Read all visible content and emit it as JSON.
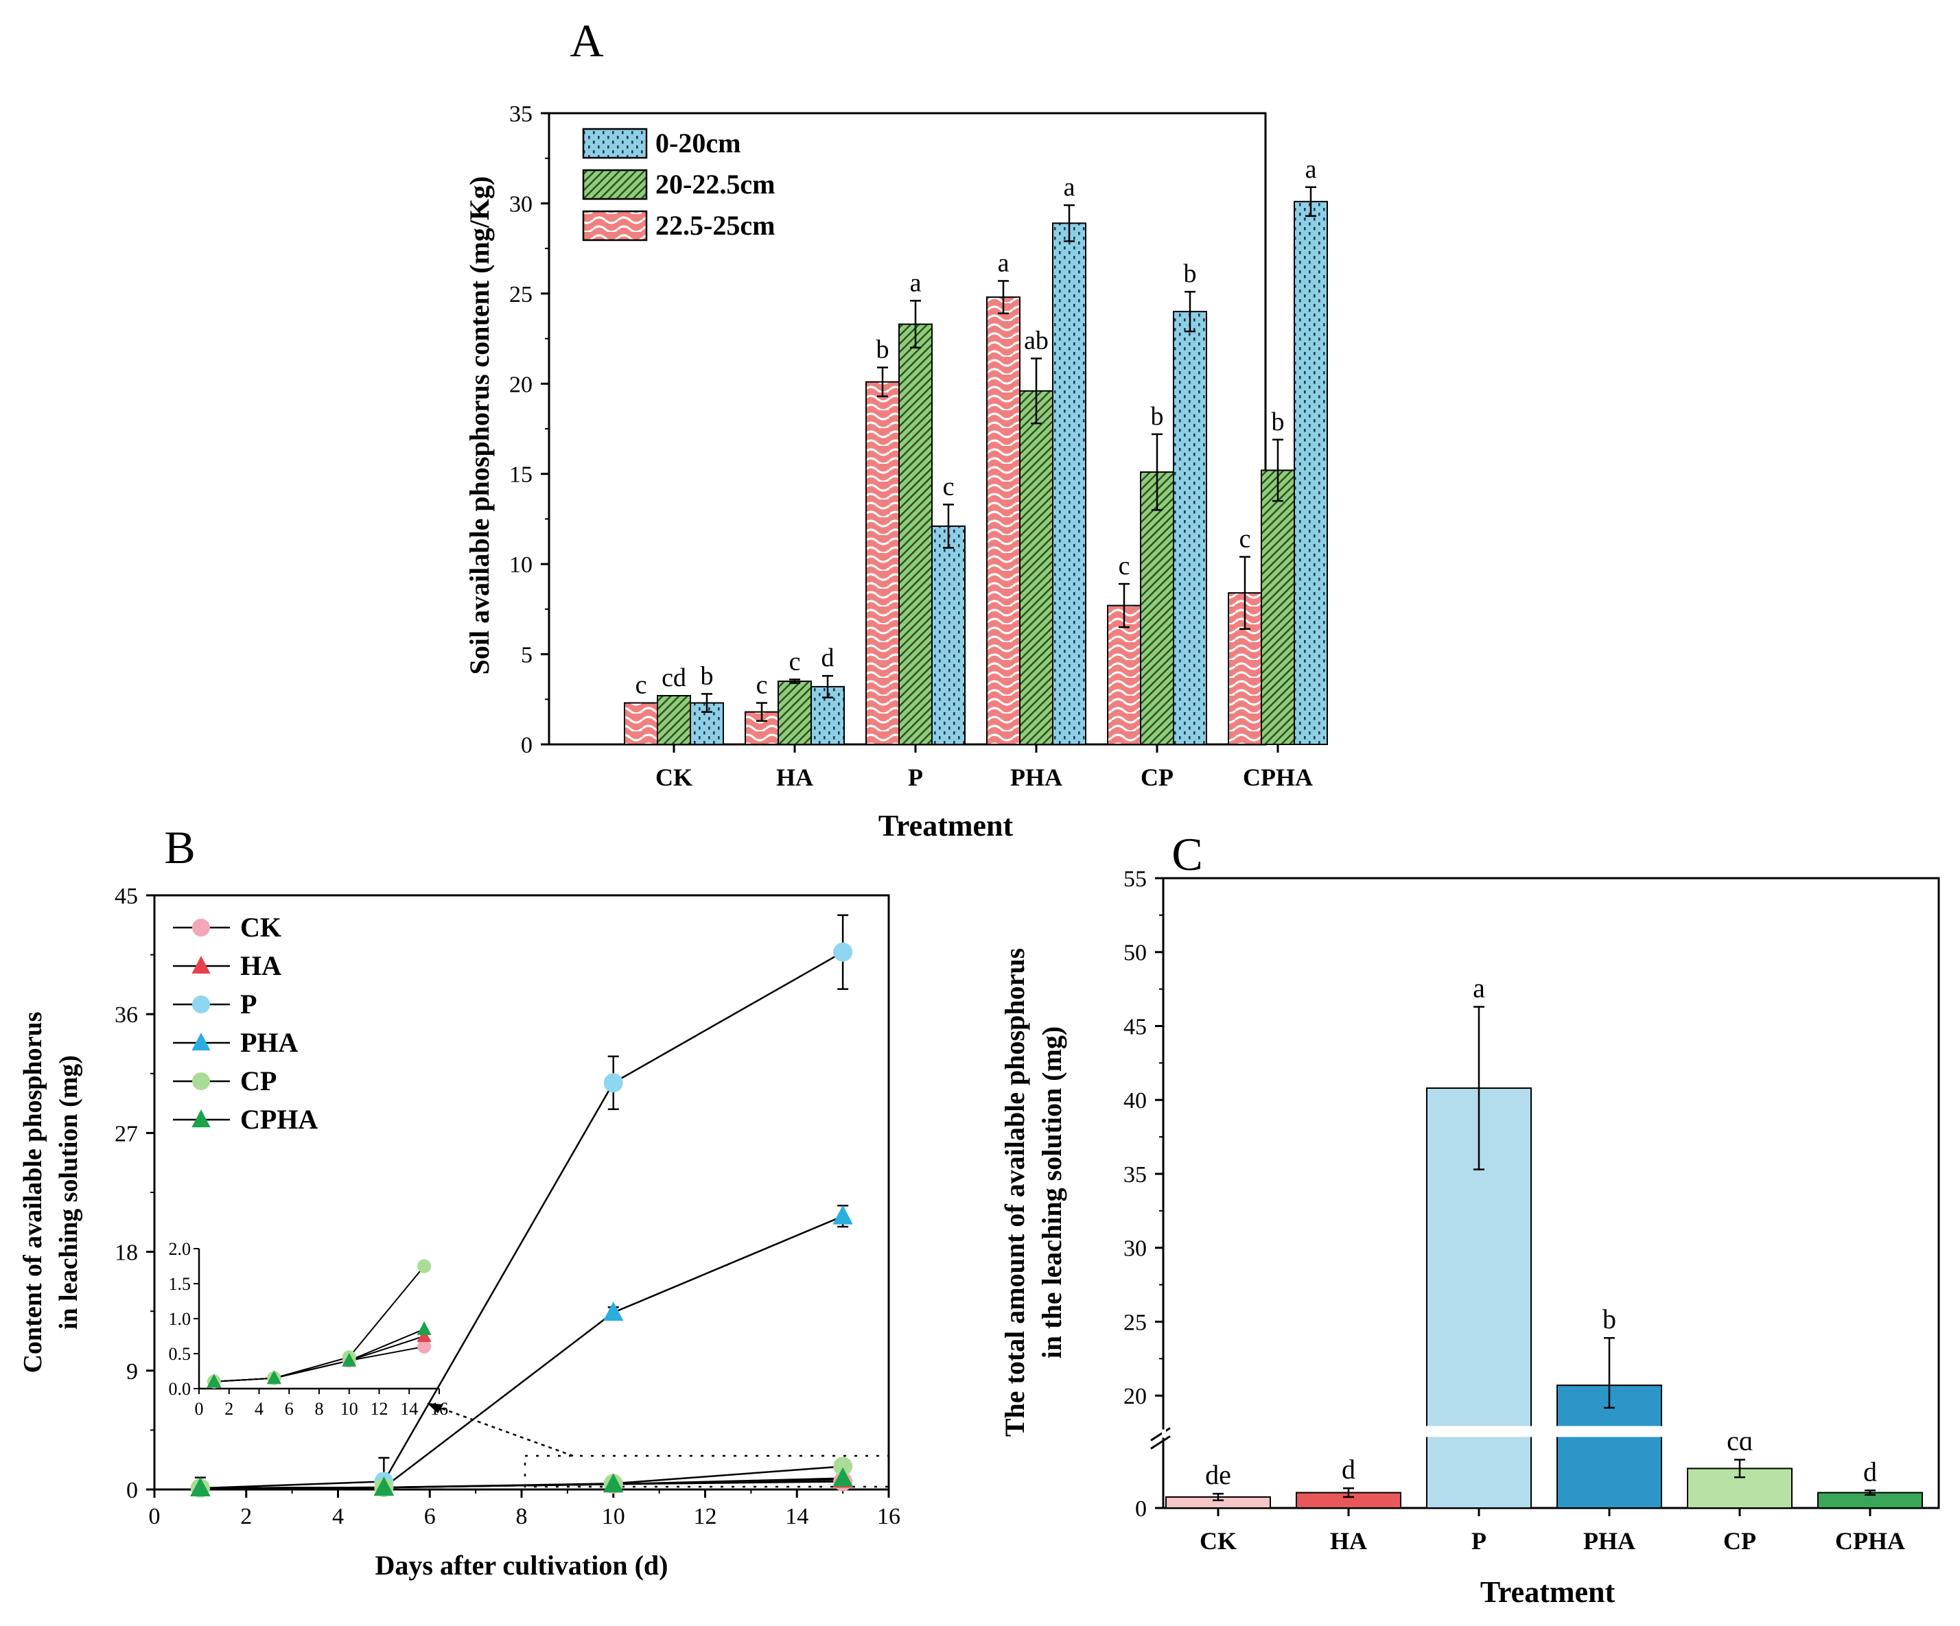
{
  "chart_data": [
    {
      "id": "A",
      "panel_label": "A",
      "type": "bar",
      "categories": [
        "CK",
        "HA",
        "P",
        "PHA",
        "CP",
        "CPHA"
      ],
      "series": [
        {
          "name": "22.5-25cm",
          "color": "#f08080",
          "pattern": "wave",
          "values": [
            2.3,
            1.8,
            20.1,
            24.8,
            7.7,
            8.4
          ],
          "errors": [
            0,
            0.5,
            0.8,
            0.9,
            1.2,
            2.0
          ],
          "letters": [
            "c",
            "c",
            "b",
            "a",
            "c",
            "c"
          ]
        },
        {
          "name": "20-22.5cm",
          "color": "#8fcc7a",
          "pattern": "diag",
          "values": [
            2.7,
            3.5,
            23.3,
            19.6,
            15.1,
            15.2
          ],
          "errors": [
            0,
            0.1,
            1.3,
            1.8,
            2.1,
            1.7
          ],
          "letters": [
            "cd",
            "c",
            "a",
            "ab",
            "b",
            "b"
          ]
        },
        {
          "name": "0-20cm",
          "color": "#8ecfe6",
          "pattern": "dots",
          "values": [
            2.3,
            3.2,
            12.1,
            28.9,
            24.0,
            30.1
          ],
          "errors": [
            0.5,
            0.6,
            1.2,
            1.0,
            1.1,
            0.8
          ],
          "letters": [
            "b",
            "d",
            "c",
            "a",
            "b",
            "a"
          ]
        }
      ],
      "legend_order": [
        "0-20cm",
        "20-22.5cm",
        "22.5-25cm"
      ],
      "legend_position": "top-left",
      "xlabel": "Treatment",
      "ylabel": "Soil available phosphorus content (mg/Kg)",
      "ylim": [
        0,
        35
      ],
      "yticks": [
        "0",
        "5",
        "10",
        "15",
        "20",
        "25",
        "30",
        "35"
      ]
    },
    {
      "id": "B",
      "panel_label": "B",
      "type": "line",
      "x": [
        1,
        5,
        10,
        15
      ],
      "series": [
        {
          "name": "CK",
          "color": "#f4a7b6",
          "marker": "circle",
          "values": [
            0.1,
            0.15,
            0.4,
            0.6
          ],
          "errors": [
            0,
            0,
            0,
            0
          ]
        },
        {
          "name": "HA",
          "color": "#e8414d",
          "marker": "triangle",
          "values": [
            0.1,
            0.15,
            0.4,
            0.75
          ],
          "errors": [
            0,
            0,
            0,
            0
          ]
        },
        {
          "name": "P",
          "color": "#8fd6f0",
          "marker": "circle",
          "values": [
            0.1,
            0.6,
            30.8,
            40.7
          ],
          "errors": [
            0.8,
            1.8,
            2.0,
            2.8
          ]
        },
        {
          "name": "PHA",
          "color": "#2aaee0",
          "marker": "triangle",
          "values": [
            0.1,
            0.15,
            13.4,
            20.7
          ],
          "errors": [
            0,
            0,
            0.4,
            0.8
          ]
        },
        {
          "name": "CP",
          "color": "#a9dc95",
          "marker": "circle",
          "values": [
            0.1,
            0.15,
            0.45,
            1.75
          ],
          "errors": [
            0,
            0,
            0,
            0
          ]
        },
        {
          "name": "CPHA",
          "color": "#1aa34a",
          "marker": "triangle",
          "values": [
            0.1,
            0.15,
            0.4,
            0.85
          ],
          "errors": [
            0,
            0,
            0,
            0
          ]
        }
      ],
      "xlabel": "Days after cultivation (d)",
      "ylabel": "Content of available phosphorus\nin leaching solution (mg)",
      "xlim": [
        0,
        16
      ],
      "ylim": [
        0,
        45
      ],
      "xticks": [
        "0",
        "2",
        "4",
        "6",
        "8",
        "10",
        "12",
        "14",
        "16"
      ],
      "yticks": [
        "0",
        "9",
        "18",
        "27",
        "36",
        "45"
      ],
      "legend_position": "top-left",
      "inset": {
        "xlim": [
          0,
          16
        ],
        "ylim": [
          0,
          2.0
        ],
        "xticks": [
          "0",
          "2",
          "4",
          "6",
          "8",
          "10",
          "12",
          "14",
          "16"
        ],
        "yticks": [
          "0.0",
          "0.5",
          "1.0",
          "1.5",
          "2.0"
        ],
        "series_included": [
          "CK",
          "HA",
          "CP",
          "CPHA"
        ]
      }
    },
    {
      "id": "C",
      "panel_label": "C",
      "type": "bar",
      "categories": [
        "CK",
        "HA",
        "P",
        "PHA",
        "CP",
        "CPHA"
      ],
      "values": [
        0.5,
        0.7,
        40.8,
        20.7,
        1.8,
        0.7
      ],
      "errors": [
        0.15,
        0.2,
        5.5,
        3.2,
        0.4,
        0.1
      ],
      "letters": [
        "de",
        "d",
        "a",
        "b",
        "cd",
        "d"
      ],
      "colors": [
        "#f7c6c7",
        "#e8585a",
        "#b3dcec",
        "#2d96c8",
        "#b6e3a4",
        "#3aa65a"
      ],
      "xlabel": "Treatment",
      "ylabel": "The total amount of available phosphorus\nin the leaching solution (mg)",
      "ylim": [
        0,
        55
      ],
      "axis_break": [
        3,
        19.5
      ],
      "yticks_upper": [
        "20",
        "25",
        "30",
        "35",
        "40",
        "45",
        "50",
        "55"
      ],
      "yticks_lower": [
        "0"
      ]
    }
  ]
}
